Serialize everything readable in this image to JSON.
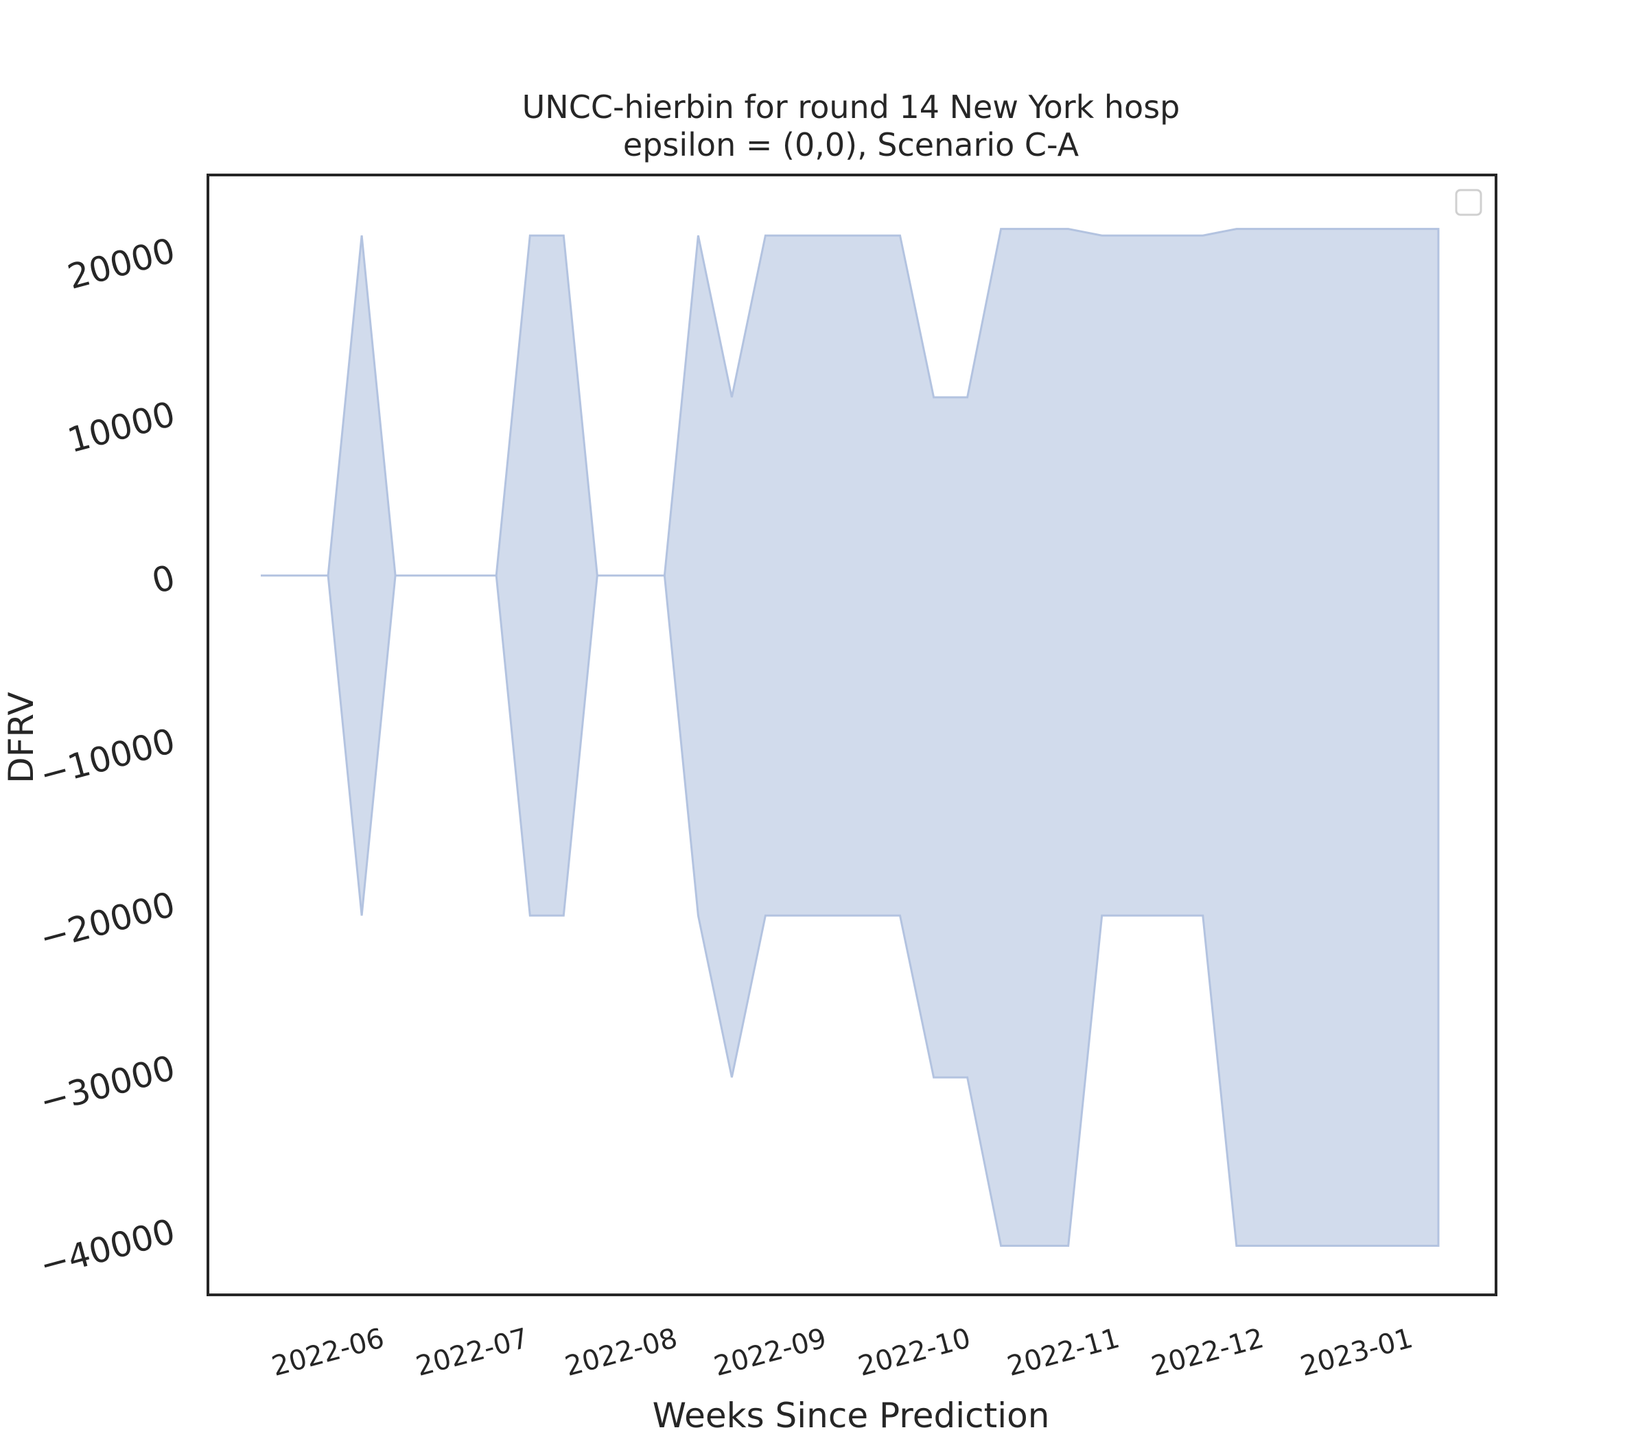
{
  "chart_data": {
    "type": "area",
    "title": "UNCC-hierbin for round 14 New York hosp",
    "subtitle": "epsilon = (0,0), Scenario C-A",
    "xlabel": "Weeks Since Prediction",
    "ylabel": "DFRV",
    "x_tick_labels": [
      "2022-06",
      "2022-07",
      "2022-08",
      "2022-09",
      "2022-10",
      "2022-11",
      "2022-12",
      "2023-01"
    ],
    "y_tick_labels": [
      "20000",
      "10000",
      "0",
      "−10000",
      "−20000",
      "−30000",
      "−40000"
    ],
    "y_ticks": [
      20000,
      10000,
      0,
      -10000,
      -20000,
      -30000,
      -40000
    ],
    "xlim": [
      "2022-05-01",
      "2023-01-24"
    ],
    "ylim": [
      -44000,
      24500
    ],
    "legend": "top-right",
    "legend_entries": [],
    "grid": false,
    "fill_color": "#b3c3e0",
    "fill_opacity": 0.6,
    "x": [
      "2022-05-12",
      "2022-05-26",
      "2022-06-02",
      "2022-06-09",
      "2022-06-23",
      "2022-06-30",
      "2022-07-07",
      "2022-07-14",
      "2022-07-21",
      "2022-07-28",
      "2022-08-04",
      "2022-08-11",
      "2022-08-18",
      "2022-08-25",
      "2022-09-01",
      "2022-09-08",
      "2022-09-15",
      "2022-09-22",
      "2022-09-29",
      "2022-10-06",
      "2022-10-13",
      "2022-10-20",
      "2022-10-27",
      "2022-11-03",
      "2022-11-10",
      "2022-11-17",
      "2022-11-24",
      "2022-12-01",
      "2022-12-08",
      "2022-12-15",
      "2022-12-22",
      "2022-12-29",
      "2023-01-05",
      "2023-01-12"
    ],
    "series": [
      {
        "upper": [
          0,
          0,
          20800,
          0,
          0,
          0,
          20800,
          20800,
          0,
          0,
          0,
          20800,
          10900,
          20800,
          20800,
          20800,
          20800,
          20800,
          10900,
          10900,
          21200,
          21200,
          21200,
          20800,
          20800,
          20800,
          20800,
          21200,
          21200,
          21200,
          21200,
          21200,
          21200,
          21200
        ],
        "lower": [
          0,
          0,
          -20800,
          0,
          0,
          0,
          -20800,
          -20800,
          0,
          0,
          0,
          -20800,
          -30700,
          -20800,
          -20800,
          -20800,
          -20800,
          -20800,
          -30700,
          -30700,
          -41000,
          -41000,
          -41000,
          -20800,
          -20800,
          -20800,
          -20800,
          -41000,
          -41000,
          -41000,
          -41000,
          -41000,
          -41000,
          -41000
        ]
      }
    ]
  }
}
